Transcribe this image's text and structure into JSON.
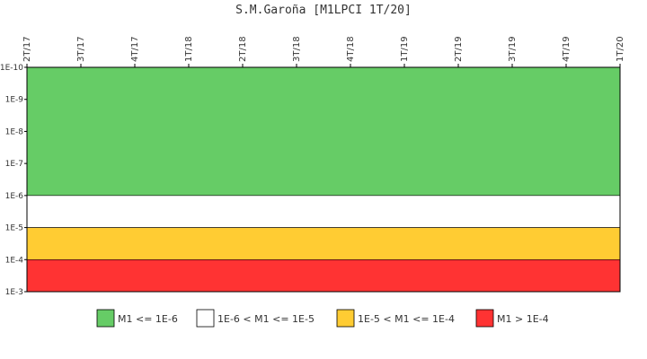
{
  "chart_data": {
    "type": "area",
    "title": "S.M.Garoña [M1LPCI 1T/20]",
    "x_ticks": [
      "2T/17",
      "3T/17",
      "4T/17",
      "1T/18",
      "2T/18",
      "3T/18",
      "4T/18",
      "1T/19",
      "2T/19",
      "3T/19",
      "4T/19",
      "1T/20"
    ],
    "y_scale": "log",
    "y_inverted": true,
    "y_ticks": [
      "1E-10",
      "1E-9",
      "1E-8",
      "1E-7",
      "1E-6",
      "1E-5",
      "1E-4",
      "1E-3"
    ],
    "ylim": [
      1e-10,
      0.001
    ],
    "bands": [
      {
        "label": "M1 <= 1E-6",
        "from": 1e-10,
        "to": 1e-06,
        "color": "#66cc66"
      },
      {
        "label": "1E-6 < M1 <= 1E-5",
        "from": 1e-06,
        "to": 1e-05,
        "color": "#ffffff"
      },
      {
        "label": "1E-5 < M1 <= 1E-4",
        "from": 1e-05,
        "to": 0.0001,
        "color": "#ffcc33"
      },
      {
        "label": "M1 > 1E-4",
        "from": 0.0001,
        "to": 0.001,
        "color": "#ff3333"
      }
    ],
    "legend_position": "bottom"
  }
}
